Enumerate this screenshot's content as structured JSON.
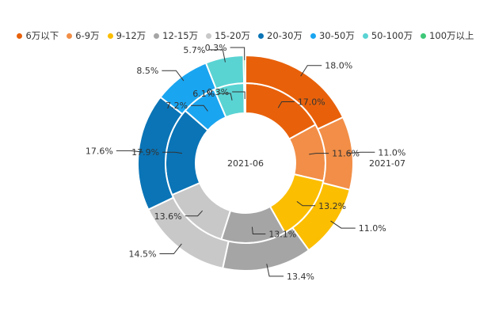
{
  "chart_data": {
    "type": "donut",
    "categories": [
      "6万以下",
      "6-9万",
      "9-12万",
      "12-15万",
      "15-20万",
      "20-30万",
      "30-50万",
      "50-100万",
      "100万以上"
    ],
    "colors": [
      "#e8610a",
      "#f28e47",
      "#fcbe00",
      "#a5a5a5",
      "#c8c8c8",
      "#0a74b6",
      "#1aa5f0",
      "#5ad3d3",
      "#3ec778"
    ],
    "series": [
      {
        "name": "2021-06",
        "values": [
          17.0,
          11.6,
          13.2,
          13.1,
          13.6,
          17.9,
          7.2,
          6.1,
          0.3
        ],
        "labels": [
          "17.0%",
          "11.6%",
          "13.2%",
          "13.1%",
          "13.6%",
          "17.9%",
          "7.2%",
          "6.1%",
          "0.3%"
        ]
      },
      {
        "name": "2021-07",
        "values": [
          18.0,
          11.0,
          11.0,
          13.4,
          14.5,
          17.6,
          8.5,
          5.7,
          0.3
        ],
        "labels": [
          "18.0%",
          "11.0%",
          "11.0%",
          "13.4%",
          "14.5%",
          "17.6%",
          "8.5%",
          "5.7%",
          "0.3%"
        ]
      }
    ],
    "legend_position": "top"
  }
}
